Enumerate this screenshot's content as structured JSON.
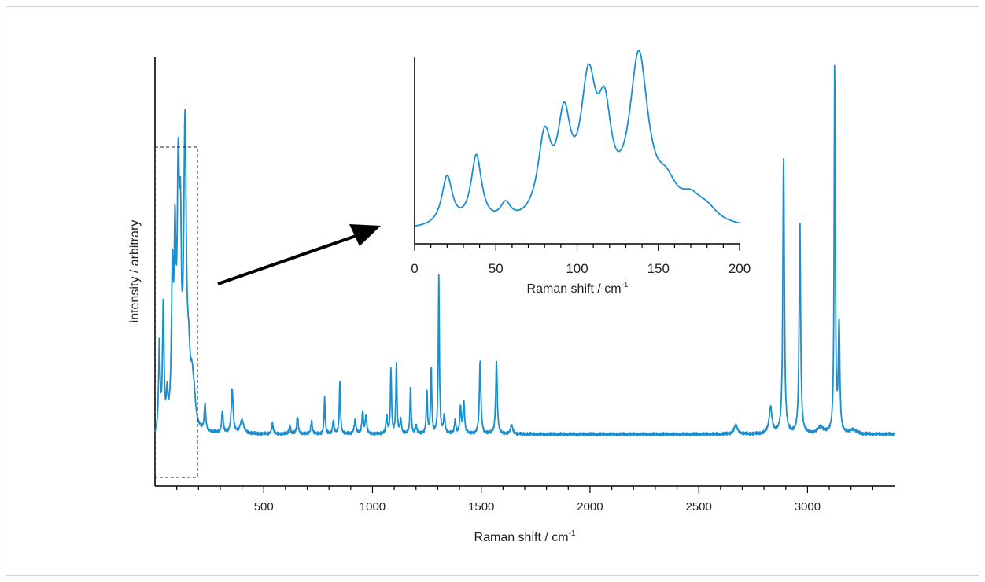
{
  "chart_data": [
    {
      "type": "line",
      "title": "",
      "xlabel": "Raman shift / cm",
      "xlabel_sup": "-1",
      "ylabel": "intensity / arbitrary",
      "xlim": [
        0,
        3400
      ],
      "ylim": [
        0,
        1
      ],
      "x_ticks_major": [
        500,
        1000,
        1500,
        2000,
        2500,
        3000
      ],
      "x_tick_labels": [
        "500",
        "1000",
        "1500",
        "2000",
        "2500",
        "3000"
      ],
      "x_ticks_minor_step": 100,
      "y_tick_labels": [],
      "grid": false,
      "series": [
        {
          "color": "#1a8fd0",
          "baseline": 0.055,
          "peaks": [
            [
              20,
              0.2,
              4
            ],
            [
              38,
              0.28,
              4
            ],
            [
              56,
              0.07,
              4
            ],
            [
              80,
              0.32,
              5
            ],
            [
              92,
              0.37,
              5
            ],
            [
              107,
              0.52,
              6
            ],
            [
              117,
              0.35,
              5
            ],
            [
              138,
              0.66,
              7
            ],
            [
              155,
              0.12,
              8
            ],
            [
              170,
              0.08,
              8
            ],
            [
              180,
              0.05,
              8
            ],
            [
              230,
              0.06,
              4
            ],
            [
              310,
              0.05,
              4
            ],
            [
              355,
              0.1,
              5
            ],
            [
              400,
              0.03,
              10
            ],
            [
              540,
              0.025,
              4
            ],
            [
              620,
              0.02,
              4
            ],
            [
              655,
              0.04,
              4
            ],
            [
              720,
              0.03,
              4
            ],
            [
              780,
              0.08,
              3
            ],
            [
              820,
              0.03,
              4
            ],
            [
              850,
              0.12,
              3
            ],
            [
              920,
              0.03,
              5
            ],
            [
              955,
              0.05,
              4
            ],
            [
              970,
              0.04,
              4
            ],
            [
              1065,
              0.04,
              4
            ],
            [
              1085,
              0.15,
              3
            ],
            [
              1110,
              0.16,
              3
            ],
            [
              1130,
              0.03,
              4
            ],
            [
              1175,
              0.11,
              3
            ],
            [
              1200,
              0.02,
              4
            ],
            [
              1250,
              0.1,
              3
            ],
            [
              1270,
              0.15,
              3
            ],
            [
              1305,
              0.36,
              3
            ],
            [
              1330,
              0.04,
              4
            ],
            [
              1380,
              0.03,
              4
            ],
            [
              1405,
              0.06,
              4
            ],
            [
              1420,
              0.07,
              4
            ],
            [
              1495,
              0.17,
              4
            ],
            [
              1570,
              0.17,
              4
            ],
            [
              1640,
              0.02,
              6
            ],
            [
              2670,
              0.02,
              10
            ],
            [
              2830,
              0.06,
              8
            ],
            [
              2890,
              0.63,
              4
            ],
            [
              2965,
              0.48,
              4
            ],
            [
              3060,
              0.015,
              15
            ],
            [
              3125,
              0.85,
              3
            ],
            [
              3145,
              0.25,
              4
            ],
            [
              3210,
              0.01,
              15
            ]
          ]
        }
      ],
      "zoom_region": [
        0,
        200
      ]
    },
    {
      "type": "line",
      "title": "",
      "xlabel": "Raman shift / cm",
      "xlabel_sup": "-1",
      "ylabel": "",
      "xlim": [
        0,
        200
      ],
      "x_ticks_major": [
        0,
        50,
        100,
        150,
        200
      ],
      "x_tick_labels": [
        "0",
        "50",
        "100",
        "150",
        "200"
      ],
      "x_ticks_minor_step": 10,
      "grid": false
    }
  ]
}
